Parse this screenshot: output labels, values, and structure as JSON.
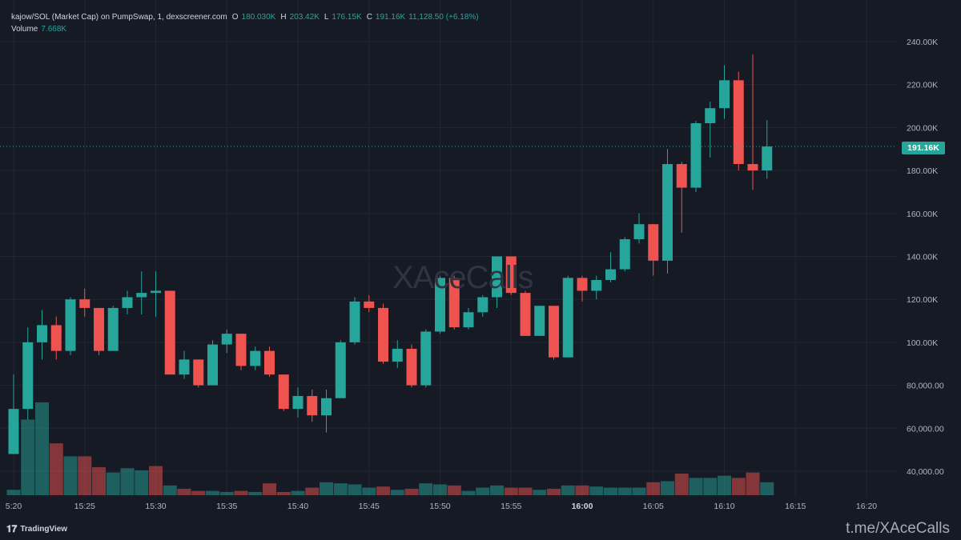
{
  "legend": {
    "pair": "kajow/SOL (Market Cap) on PumpSwap, 1, dexscreener.com",
    "o_key": "O",
    "o_val": "180.030K",
    "h_key": "H",
    "h_val": "203.42K",
    "l_key": "L",
    "l_val": "176.15K",
    "c_key": "C",
    "c_val": "191.16K",
    "change": "11,128.50 (+6.18%)",
    "volume_label": "Volume",
    "volume_val": "7.668K"
  },
  "watermark": "XAceCalls",
  "last_price_label": "191.16K",
  "footer": {
    "brand": "TradingView",
    "brand_icon": "tradingview-logo-icon",
    "link": "t.me/XAceCalls"
  },
  "colors": {
    "up": "#26a69a",
    "down": "#ef5350",
    "background": "#161a25",
    "grid": "#222633"
  },
  "chart_data": {
    "type": "candlestick",
    "y_ticks": [
      "240.00K",
      "220.00K",
      "200.00K",
      "180.00K",
      "160.00K",
      "140.00K",
      "120.00K",
      "100.00K",
      "80,000.00",
      "60,000.00",
      "40,000.00"
    ],
    "y_tick_values": [
      240000,
      220000,
      200000,
      180000,
      160000,
      140000,
      120000,
      100000,
      80000,
      60000,
      40000
    ],
    "x_ticks": [
      "5:20",
      "15:25",
      "15:30",
      "15:35",
      "15:40",
      "15:45",
      "15:50",
      "15:55",
      "16:00",
      "16:05",
      "16:10",
      "16:15",
      "16:20"
    ],
    "x_bold_tick": "16:00",
    "last_price": 191160,
    "candles": [
      {
        "o": 48000,
        "h": 85000,
        "l": 48000,
        "c": 69000
      },
      {
        "o": 69000,
        "h": 107000,
        "l": 64000,
        "c": 100000
      },
      {
        "o": 100000,
        "h": 115000,
        "l": 92000,
        "c": 108000
      },
      {
        "o": 108000,
        "h": 112000,
        "l": 92000,
        "c": 96000
      },
      {
        "o": 96000,
        "h": 121000,
        "l": 94000,
        "c": 120000
      },
      {
        "o": 120000,
        "h": 125000,
        "l": 112000,
        "c": 116000
      },
      {
        "o": 116000,
        "h": 116000,
        "l": 94000,
        "c": 96000
      },
      {
        "o": 96000,
        "h": 117000,
        "l": 96000,
        "c": 116000
      },
      {
        "o": 116000,
        "h": 124000,
        "l": 113000,
        "c": 121000
      },
      {
        "o": 121000,
        "h": 133000,
        "l": 113000,
        "c": 123000
      },
      {
        "o": 123000,
        "h": 133000,
        "l": 112000,
        "c": 124000
      },
      {
        "o": 124000,
        "h": 124000,
        "l": 85000,
        "c": 85000
      },
      {
        "o": 85000,
        "h": 96000,
        "l": 83000,
        "c": 92000
      },
      {
        "o": 92000,
        "h": 92000,
        "l": 79000,
        "c": 80000
      },
      {
        "o": 80000,
        "h": 101000,
        "l": 80000,
        "c": 99000
      },
      {
        "o": 99000,
        "h": 106000,
        "l": 95000,
        "c": 104000
      },
      {
        "o": 104000,
        "h": 104000,
        "l": 87000,
        "c": 89000
      },
      {
        "o": 89000,
        "h": 98000,
        "l": 87000,
        "c": 96000
      },
      {
        "o": 96000,
        "h": 98000,
        "l": 84000,
        "c": 85000
      },
      {
        "o": 85000,
        "h": 85000,
        "l": 68000,
        "c": 69000
      },
      {
        "o": 69000,
        "h": 79000,
        "l": 65000,
        "c": 75000
      },
      {
        "o": 75000,
        "h": 78000,
        "l": 63000,
        "c": 66000
      },
      {
        "o": 66000,
        "h": 78000,
        "l": 58000,
        "c": 74000
      },
      {
        "o": 74000,
        "h": 101000,
        "l": 74000,
        "c": 100000
      },
      {
        "o": 100000,
        "h": 121000,
        "l": 99000,
        "c": 119000
      },
      {
        "o": 119000,
        "h": 122000,
        "l": 114000,
        "c": 116000
      },
      {
        "o": 116000,
        "h": 118000,
        "l": 90000,
        "c": 91000
      },
      {
        "o": 91000,
        "h": 101000,
        "l": 88000,
        "c": 97000
      },
      {
        "o": 97000,
        "h": 99000,
        "l": 79000,
        "c": 80000
      },
      {
        "o": 80000,
        "h": 106000,
        "l": 79000,
        "c": 105000
      },
      {
        "o": 105000,
        "h": 131000,
        "l": 104000,
        "c": 130000
      },
      {
        "o": 130000,
        "h": 131000,
        "l": 106000,
        "c": 107000
      },
      {
        "o": 107000,
        "h": 116000,
        "l": 106000,
        "c": 114000
      },
      {
        "o": 114000,
        "h": 122000,
        "l": 112000,
        "c": 121000
      },
      {
        "o": 121000,
        "h": 140000,
        "l": 116000,
        "c": 140000
      },
      {
        "o": 140000,
        "h": 140000,
        "l": 122000,
        "c": 123000
      },
      {
        "o": 123000,
        "h": 124000,
        "l": 103000,
        "c": 103000
      },
      {
        "o": 103000,
        "h": 117000,
        "l": 103000,
        "c": 117000
      },
      {
        "o": 117000,
        "h": 117000,
        "l": 92000,
        "c": 93000
      },
      {
        "o": 93000,
        "h": 131000,
        "l": 93000,
        "c": 130000
      },
      {
        "o": 130000,
        "h": 131000,
        "l": 119000,
        "c": 124000
      },
      {
        "o": 124000,
        "h": 131000,
        "l": 120000,
        "c": 129000
      },
      {
        "o": 129000,
        "h": 142000,
        "l": 128000,
        "c": 134000
      },
      {
        "o": 134000,
        "h": 149000,
        "l": 133000,
        "c": 148000
      },
      {
        "o": 148000,
        "h": 160000,
        "l": 146000,
        "c": 155000
      },
      {
        "o": 155000,
        "h": 155000,
        "l": 131000,
        "c": 138000
      },
      {
        "o": 138000,
        "h": 190000,
        "l": 132000,
        "c": 183000
      },
      {
        "o": 183000,
        "h": 184000,
        "l": 151000,
        "c": 172000
      },
      {
        "o": 172000,
        "h": 203000,
        "l": 170000,
        "c": 202000
      },
      {
        "o": 202000,
        "h": 212000,
        "l": 186000,
        "c": 209000
      },
      {
        "o": 209000,
        "h": 229000,
        "l": 204000,
        "c": 222000
      },
      {
        "o": 222000,
        "h": 226000,
        "l": 180000,
        "c": 183000
      },
      {
        "o": 183000,
        "h": 234000,
        "l": 171000,
        "c": 180000
      },
      {
        "o": 180030,
        "h": 203420,
        "l": 176150,
        "c": 191160
      }
    ],
    "volume_scale_max": 100,
    "volumes": [
      {
        "v": 5,
        "up": true
      },
      {
        "v": 70,
        "up": true
      },
      {
        "v": 86,
        "up": true
      },
      {
        "v": 48,
        "up": false
      },
      {
        "v": 36,
        "up": true
      },
      {
        "v": 36,
        "up": false
      },
      {
        "v": 26,
        "up": false
      },
      {
        "v": 21,
        "up": true
      },
      {
        "v": 25,
        "up": true
      },
      {
        "v": 23,
        "up": true
      },
      {
        "v": 27,
        "up": false
      },
      {
        "v": 9,
        "up": true
      },
      {
        "v": 6,
        "up": false
      },
      {
        "v": 4,
        "up": false
      },
      {
        "v": 4,
        "up": true
      },
      {
        "v": 3,
        "up": true
      },
      {
        "v": 4,
        "up": false
      },
      {
        "v": 3,
        "up": true
      },
      {
        "v": 11,
        "up": false
      },
      {
        "v": 3,
        "up": false
      },
      {
        "v": 4,
        "up": true
      },
      {
        "v": 7,
        "up": false
      },
      {
        "v": 12,
        "up": true
      },
      {
        "v": 11,
        "up": true
      },
      {
        "v": 10,
        "up": true
      },
      {
        "v": 7,
        "up": true
      },
      {
        "v": 8,
        "up": false
      },
      {
        "v": 5,
        "up": true
      },
      {
        "v": 6,
        "up": false
      },
      {
        "v": 11,
        "up": true
      },
      {
        "v": 10,
        "up": true
      },
      {
        "v": 9,
        "up": false
      },
      {
        "v": 4,
        "up": true
      },
      {
        "v": 7,
        "up": true
      },
      {
        "v": 9,
        "up": true
      },
      {
        "v": 7,
        "up": false
      },
      {
        "v": 7,
        "up": false
      },
      {
        "v": 5,
        "up": true
      },
      {
        "v": 6,
        "up": false
      },
      {
        "v": 9,
        "up": true
      },
      {
        "v": 9,
        "up": false
      },
      {
        "v": 8,
        "up": true
      },
      {
        "v": 7,
        "up": true
      },
      {
        "v": 7,
        "up": true
      },
      {
        "v": 7,
        "up": true
      },
      {
        "v": 12,
        "up": false
      },
      {
        "v": 13,
        "up": true
      },
      {
        "v": 20,
        "up": false
      },
      {
        "v": 16,
        "up": true
      },
      {
        "v": 16,
        "up": true
      },
      {
        "v": 18,
        "up": true
      },
      {
        "v": 16,
        "up": false
      },
      {
        "v": 21,
        "up": false
      },
      {
        "v": 12,
        "up": true
      }
    ]
  }
}
